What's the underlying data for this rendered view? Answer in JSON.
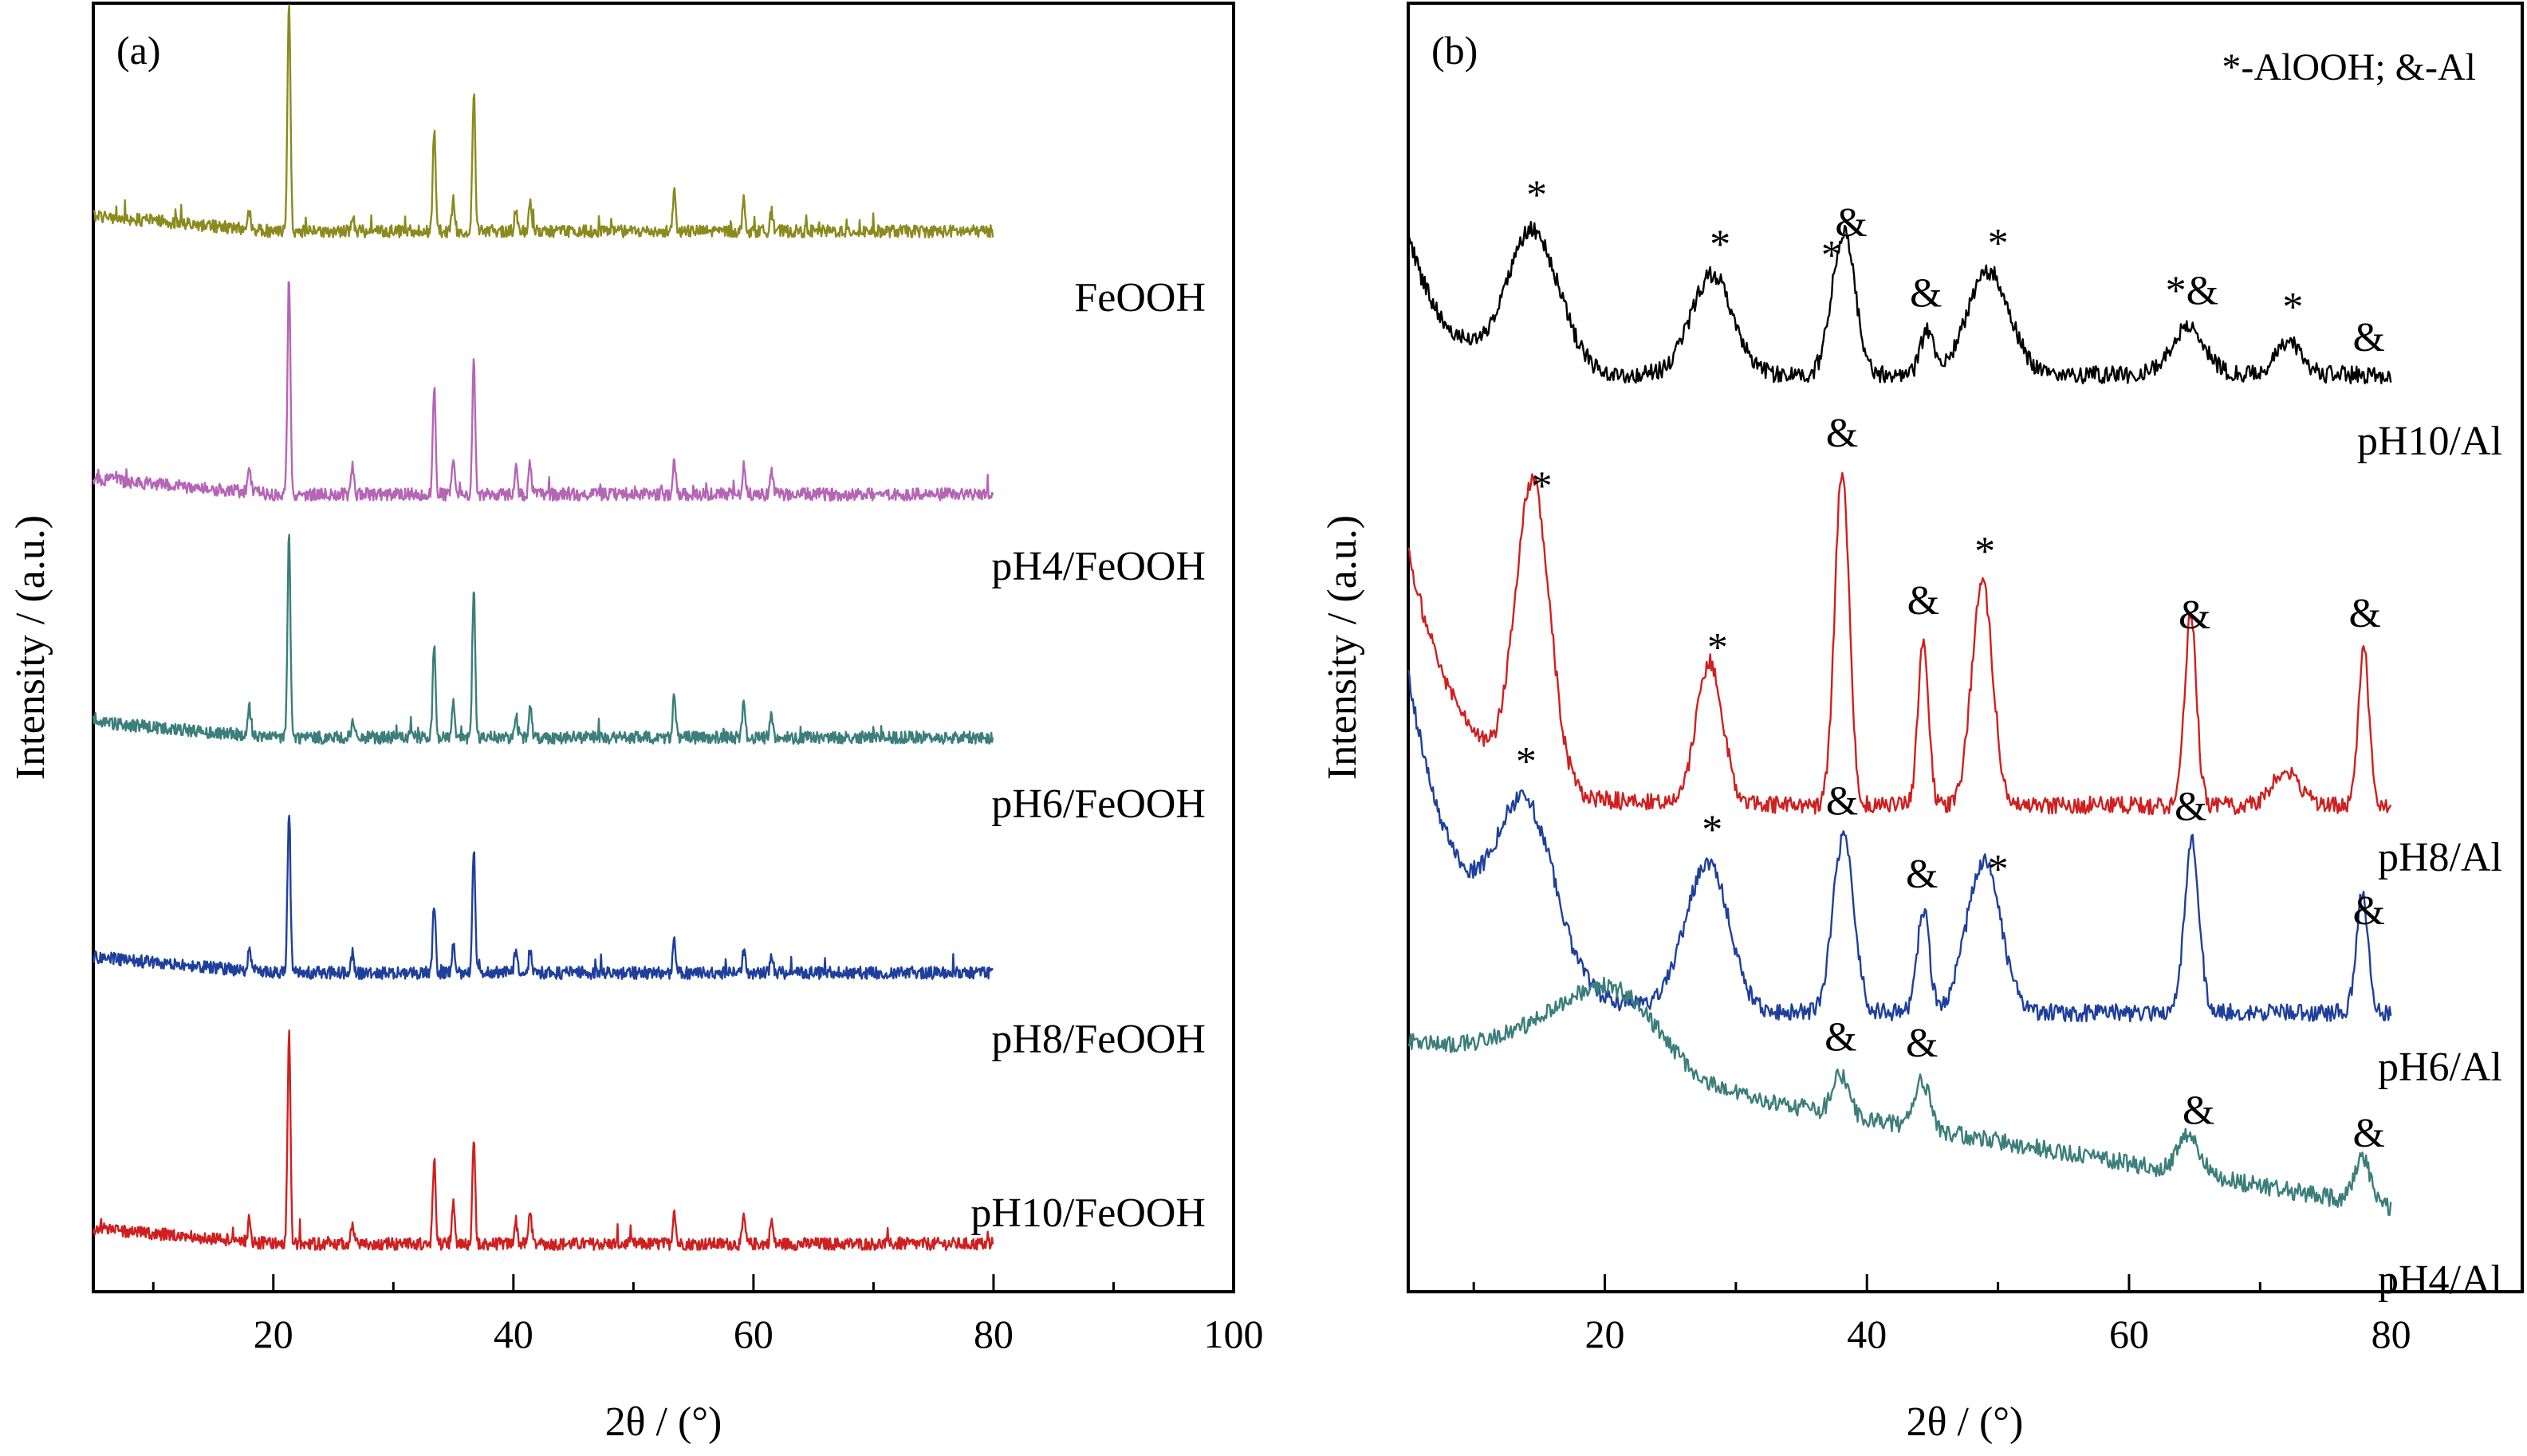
{
  "chart_data": [
    {
      "panel_label": "(a)",
      "type": "line",
      "xlabel": "2θ / (°)",
      "ylabel": "Intensity / (a.u.)",
      "xlim": [
        5,
        100
      ],
      "xticks": [
        20,
        40,
        60,
        80,
        100
      ],
      "x_range_data": [
        5,
        80
      ],
      "peak_positions": [
        18.0,
        21.3,
        26.6,
        33.4,
        35.0,
        36.7,
        40.2,
        41.4,
        53.4,
        59.2,
        61.5
      ],
      "series": [
        {
          "name": "FeOOH",
          "color": "#8b8a1e",
          "peak_heights": [
            25,
            300,
            20,
            130,
            40,
            180,
            25,
            40,
            50,
            40,
            25
          ]
        },
        {
          "name": "pH4/FeOOH",
          "color": "#b565b5",
          "peak_heights": [
            35,
            280,
            35,
            140,
            45,
            170,
            35,
            40,
            45,
            40,
            30
          ]
        },
        {
          "name": "pH6/FeOOH",
          "color": "#3b7e7b",
          "peak_heights": [
            35,
            260,
            20,
            120,
            45,
            190,
            30,
            45,
            60,
            45,
            30
          ]
        },
        {
          "name": "pH8/FeOOH",
          "color": "#1f3f9c",
          "peak_heights": [
            30,
            200,
            25,
            90,
            35,
            160,
            30,
            30,
            45,
            30,
            25
          ]
        },
        {
          "name": "pH10/FeOOH",
          "color": "#d01f1f",
          "peak_heights": [
            30,
            270,
            25,
            110,
            50,
            130,
            30,
            45,
            45,
            35,
            30
          ]
        }
      ]
    },
    {
      "panel_label": "(b)",
      "type": "line",
      "xlabel": "2θ / (°)",
      "ylabel": "Intensity / (a.u.)",
      "xlim": [
        5,
        90
      ],
      "xticks": [
        20,
        40,
        60,
        80
      ],
      "x_range_data": [
        5,
        80
      ],
      "legend": "*-AlOOH; &-Al",
      "series": [
        {
          "name": "pH10/Al",
          "color": "#000000",
          "peaks": [
            [
              14.5,
              175,
              2.0
            ],
            [
              28.2,
              125,
              1.6
            ],
            [
              37.8,
              80,
              0.8
            ],
            [
              38.5,
              115,
              0.8
            ],
            [
              44.6,
              55,
              0.5
            ],
            [
              49.3,
              130,
              1.6
            ],
            [
              64.5,
              60,
              1.3
            ],
            [
              72.2,
              40,
              1.0
            ]
          ]
        },
        {
          "name": "pH8/Al",
          "color": "#d01f1f",
          "peaks": [
            [
              14.5,
              380,
              1.3
            ],
            [
              28.0,
              180,
              1.0
            ],
            [
              38.1,
              420,
              0.55
            ],
            [
              44.3,
              210,
              0.4
            ],
            [
              48.8,
              280,
              0.8
            ],
            [
              64.7,
              240,
              0.45
            ],
            [
              72.0,
              45,
              1.0
            ],
            [
              77.9,
              200,
              0.4
            ]
          ]
        },
        {
          "name": "pH6/Al",
          "color": "#1f3f9c",
          "peaks": [
            [
              14.0,
              210,
              2.2
            ],
            [
              27.0,
              100,
              1.5
            ],
            [
              28.5,
              110,
              1.4
            ],
            [
              38.2,
              220,
              0.8
            ],
            [
              44.3,
              130,
              0.45
            ],
            [
              48.9,
              190,
              1.3
            ],
            [
              64.8,
              215,
              0.55
            ],
            [
              77.8,
              150,
              0.45
            ]
          ]
        },
        {
          "name": "pH4/Al",
          "color": "#3b7e7b",
          "peaks": [
            [
              18.5,
              70,
              4.5
            ],
            [
              21.5,
              50,
              3.0
            ],
            [
              38.0,
              50,
              0.6
            ],
            [
              44.2,
              60,
              0.6
            ],
            [
              64.6,
              50,
              0.8
            ],
            [
              77.8,
              60,
              0.6
            ]
          ]
        }
      ],
      "markers": [
        {
          "series": "pH10/Al",
          "text": "*",
          "x": 14.8
        },
        {
          "series": "pH10/Al",
          "text": "*",
          "x": 28.8
        },
        {
          "series": "pH10/Al",
          "text": "&",
          "x": 38.8
        },
        {
          "series": "pH10/Al",
          "text": "*",
          "x": 37.3
        },
        {
          "series": "pH10/Al",
          "text": "&",
          "x": 44.5
        },
        {
          "series": "pH10/Al",
          "text": "*",
          "x": 50.0
        },
        {
          "series": "pH10/Al",
          "text": "*&",
          "x": 64.8
        },
        {
          "series": "pH10/Al",
          "text": "*",
          "x": 72.5
        },
        {
          "series": "pH10/Al",
          "text": "&",
          "x": 78.3
        },
        {
          "series": "pH8/Al",
          "text": "*",
          "x": 15.2
        },
        {
          "series": "pH8/Al",
          "text": "&",
          "x": 38.1
        },
        {
          "series": "pH8/Al",
          "text": "*",
          "x": 28.6
        },
        {
          "series": "pH8/Al",
          "text": "&",
          "x": 44.3
        },
        {
          "series": "pH8/Al",
          "text": "*",
          "x": 49.0
        },
        {
          "series": "pH8/Al",
          "text": "&",
          "x": 65.0
        },
        {
          "series": "pH8/Al",
          "text": "&",
          "x": 78.0
        },
        {
          "series": "pH6/Al",
          "text": "*",
          "x": 14.0
        },
        {
          "series": "pH6/Al",
          "text": "&",
          "x": 38.1
        },
        {
          "series": "pH6/Al",
          "text": "*",
          "x": 28.2
        },
        {
          "series": "pH6/Al",
          "text": "&",
          "x": 44.2
        },
        {
          "series": "pH6/Al",
          "text": "*",
          "x": 50.0
        },
        {
          "series": "pH6/Al",
          "text": "&",
          "x": 64.7
        },
        {
          "series": "pH6/Al",
          "text": "&",
          "x": 78.3
        },
        {
          "series": "pH4/Al",
          "text": "&",
          "x": 38.0
        },
        {
          "series": "pH4/Al",
          "text": "&",
          "x": 44.2
        },
        {
          "series": "pH4/Al",
          "text": "&",
          "x": 65.3
        },
        {
          "series": "pH4/Al",
          "text": "&",
          "x": 78.3
        }
      ]
    }
  ]
}
